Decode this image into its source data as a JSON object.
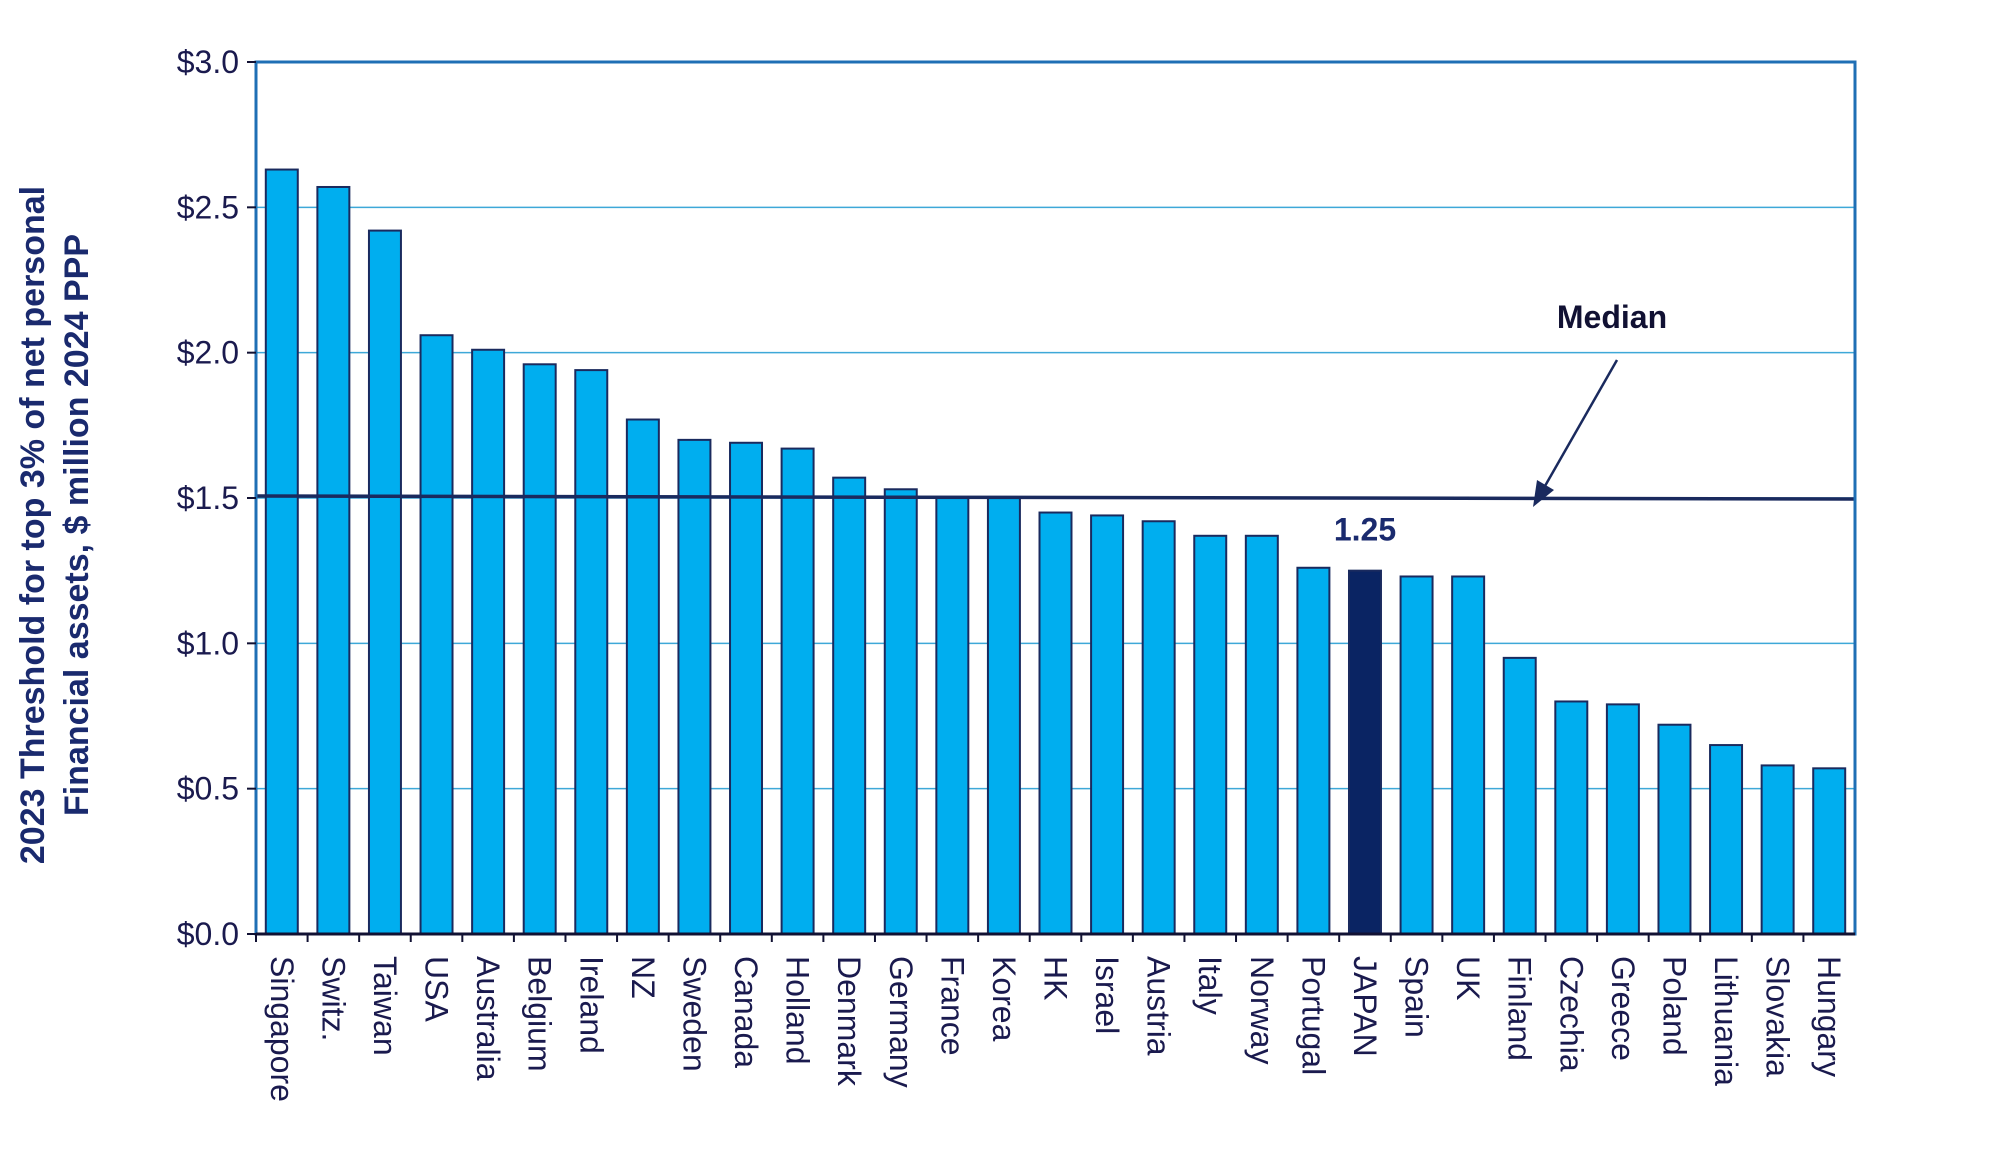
{
  "chart_data": {
    "type": "bar",
    "title": "",
    "xlabel": "",
    "ylabel_lines": [
      "2023 Threshold for top 3% of net personal",
      "Financial assets, $ million 2024 PPP"
    ],
    "ylim": [
      0,
      3.0
    ],
    "yticks": [
      0,
      0.5,
      1.0,
      1.5,
      2.0,
      2.5,
      3.0
    ],
    "ytick_labels": [
      "$0.0",
      "$0.5",
      "$1.0",
      "$1.5",
      "$2.0",
      "$2.5",
      "$3.0"
    ],
    "grid": true,
    "categories": [
      "Singapore",
      "Switz.",
      "Taiwan",
      "USA",
      "Australia",
      "Belgium",
      "Ireland",
      "NZ",
      "Sweden",
      "Canada",
      "Holland",
      "Denmark",
      "Germany",
      "France",
      "Korea",
      "HK",
      "Israel",
      "Austria",
      "Italy",
      "Norway",
      "Portugal",
      "JAPAN",
      "Spain",
      "UK",
      "Finland",
      "Czechia",
      "Greece",
      "Poland",
      "Lithuania",
      "Slovakia",
      "Hungary"
    ],
    "values": [
      2.63,
      2.57,
      2.42,
      2.06,
      2.01,
      1.96,
      1.94,
      1.77,
      1.7,
      1.69,
      1.67,
      1.57,
      1.53,
      1.5,
      1.5,
      1.45,
      1.44,
      1.42,
      1.37,
      1.37,
      1.26,
      1.25,
      1.23,
      1.23,
      0.95,
      0.8,
      0.79,
      0.72,
      0.65,
      0.58,
      0.57
    ],
    "highlight": {
      "category": "JAPAN",
      "label": "1.25"
    },
    "median": {
      "value": 1.5,
      "label": "Median"
    },
    "colors": {
      "bar": "#00AEEF",
      "highlight": "#0A2463",
      "outline": "#1a2a5e",
      "grid": "#3da8d8",
      "frame": "#1f6fb5",
      "median_line": "#1a2a5e"
    }
  }
}
